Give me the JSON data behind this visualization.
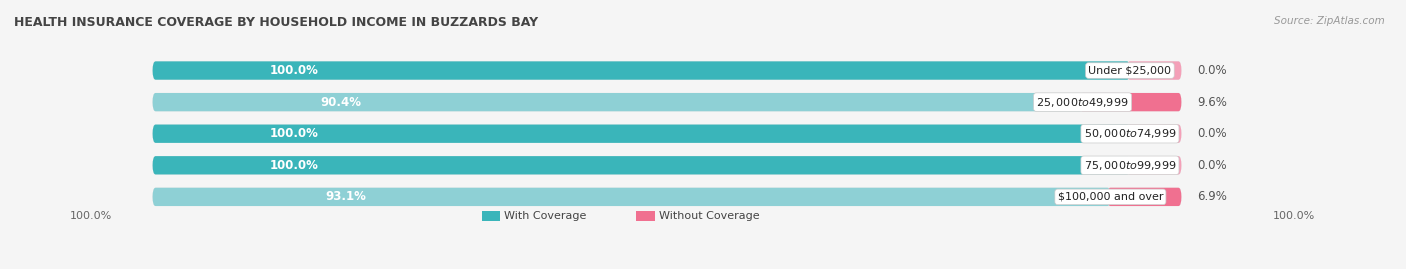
{
  "title": "HEALTH INSURANCE COVERAGE BY HOUSEHOLD INCOME IN BUZZARDS BAY",
  "source": "Source: ZipAtlas.com",
  "categories": [
    "Under $25,000",
    "$25,000 to $49,999",
    "$50,000 to $74,999",
    "$75,000 to $99,999",
    "$100,000 and over"
  ],
  "with_coverage": [
    100.0,
    90.4,
    100.0,
    100.0,
    93.1
  ],
  "without_coverage": [
    0.0,
    9.6,
    0.0,
    0.0,
    6.9
  ],
  "colors_with": [
    "#3ab5ba",
    "#8ed0d5",
    "#3ab5ba",
    "#3ab5ba",
    "#8ed0d5"
  ],
  "colors_without": [
    "#f4a0b8",
    "#f07090",
    "#f4a0b8",
    "#f4a0b8",
    "#f07090"
  ],
  "color_track": "#e2e2e2",
  "bar_height": 0.58,
  "bg_color": "#f5f5f5",
  "label_fontsize": 8.5,
  "axis_label_left": "100.0%",
  "axis_label_right": "100.0%",
  "legend_with": "With Coverage",
  "legend_without": "Without Coverage",
  "legend_color_with": "#3ab5ba",
  "legend_color_without": "#f07090"
}
